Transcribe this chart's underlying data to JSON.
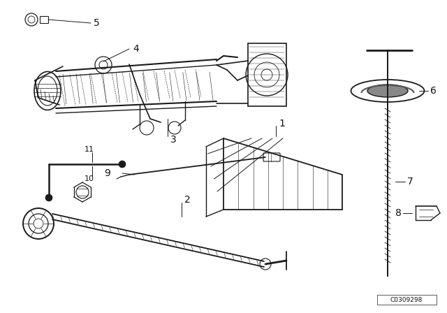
{
  "bg_color": "#ffffff",
  "line_color": "#1a1a1a",
  "label_color": "#111111",
  "catalog_number": "C0309298",
  "figsize": [
    6.4,
    4.48
  ],
  "dpi": 100
}
